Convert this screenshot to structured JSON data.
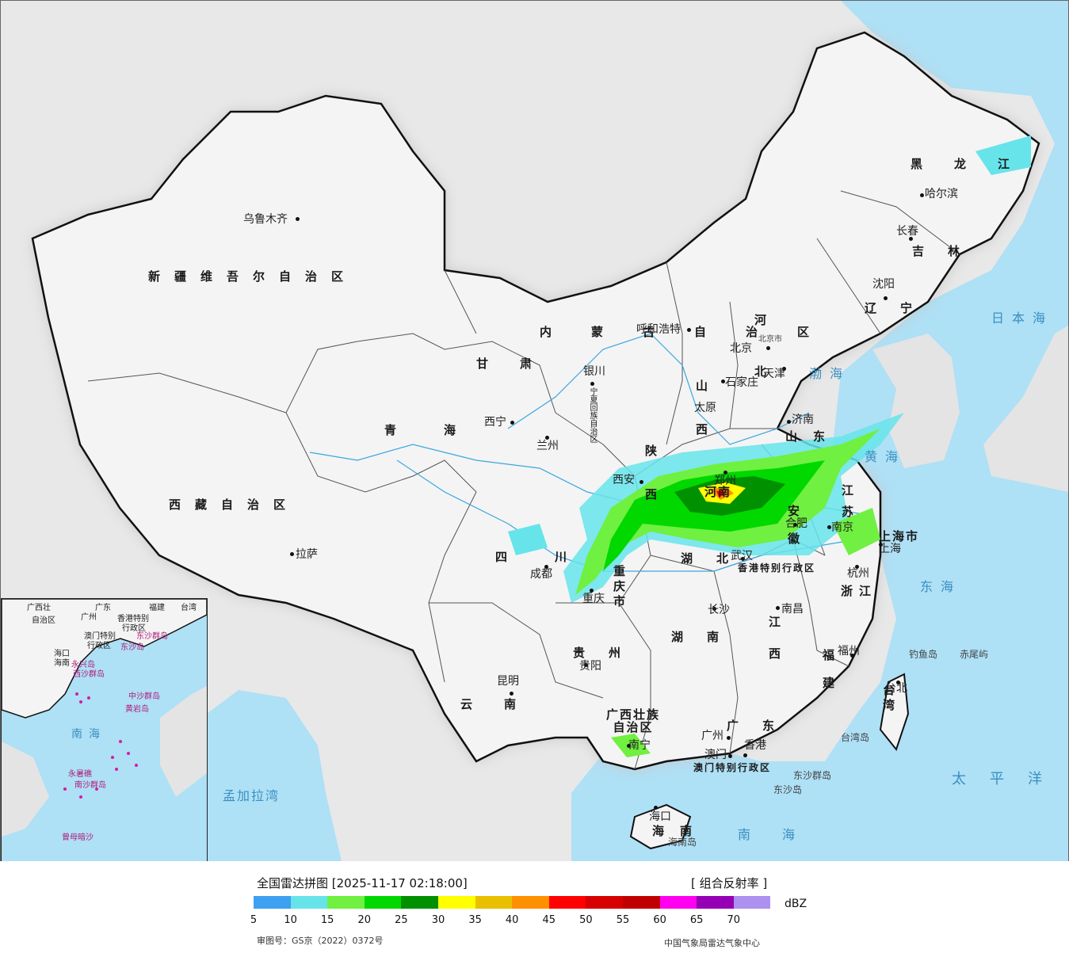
{
  "map": {
    "colors": {
      "sea": "#aee0f6",
      "land": "#f4f4f4",
      "foreign_land": "#e4e4e4",
      "border": "#111111",
      "river": "#3aa6e0"
    },
    "regions": [
      "新疆维吾尔自治区",
      "西藏自治区",
      "青海",
      "甘肃",
      "内蒙古自治区",
      "黑龙江",
      "吉林",
      "辽宁",
      "河北",
      "山西",
      "陕西",
      "宁夏回族自治区",
      "四川",
      "云南",
      "贵州",
      "广西壮族自治区",
      "广东",
      "海南",
      "湖南",
      "湖北",
      "江西",
      "福建",
      "浙江",
      "安徽",
      "江苏",
      "山东",
      "河南",
      "台湾",
      "重庆市",
      "上海市",
      "北京市",
      "天津",
      "香港特别行政区",
      "澳门特别行政区"
    ],
    "cities": [
      "乌鲁木齐",
      "拉萨",
      "西宁",
      "兰州",
      "银川",
      "呼和浩特",
      "北京",
      "天津",
      "石家庄",
      "太原",
      "济南",
      "西安",
      "郑州",
      "合肥",
      "南京",
      "上海",
      "杭州",
      "武汉",
      "成都",
      "重庆",
      "长沙",
      "南昌",
      "福州",
      "台北",
      "贵阳",
      "昆明",
      "南宁",
      "广州",
      "澳门",
      "香港",
      "海口",
      "沈阳",
      "长春",
      "哈尔滨"
    ],
    "seas": [
      "日本海",
      "渤海",
      "黄海",
      "东海",
      "南海",
      "太平洋",
      "孟加拉湾"
    ],
    "islands": [
      "钓鱼岛",
      "赤尾屿",
      "台湾岛",
      "东沙群岛",
      "东沙岛",
      "海南岛"
    ],
    "extra": {
      "henan_label": "河南",
      "beijing_small": "北京市"
    }
  },
  "inset": {
    "labels": [
      "广西壮",
      "广东",
      "福建",
      "台湾",
      "自治区",
      "广州",
      "澳门特别",
      "行政区",
      "香港特别",
      "行政区",
      "东沙群岛",
      "东沙岛",
      "海口",
      "海南",
      "西沙群岛",
      "永兴岛",
      "中沙群岛",
      "黄岩岛",
      "南海",
      "南沙群岛",
      "永暑礁",
      "曾母暗沙"
    ]
  },
  "legend": {
    "title": "全国雷达拼图 [2025-11-17 02:18:00]",
    "product": "[ 组合反射率 ]",
    "unit": "dBZ",
    "colors": [
      "#3ea0f0",
      "#66e4ea",
      "#70f040",
      "#00d800",
      "#009000",
      "#ffff00",
      "#e8c000",
      "#ff9000",
      "#ff0000",
      "#d60000",
      "#c00000",
      "#ff00f0",
      "#9600b4",
      "#ae90f0"
    ],
    "ticks": [
      "5",
      "10",
      "15",
      "20",
      "25",
      "30",
      "35",
      "40",
      "45",
      "50",
      "55",
      "60",
      "65",
      "70"
    ],
    "approval": "审图号：GS京（2022）0372号",
    "source": "中国气象局雷达气象中心"
  }
}
